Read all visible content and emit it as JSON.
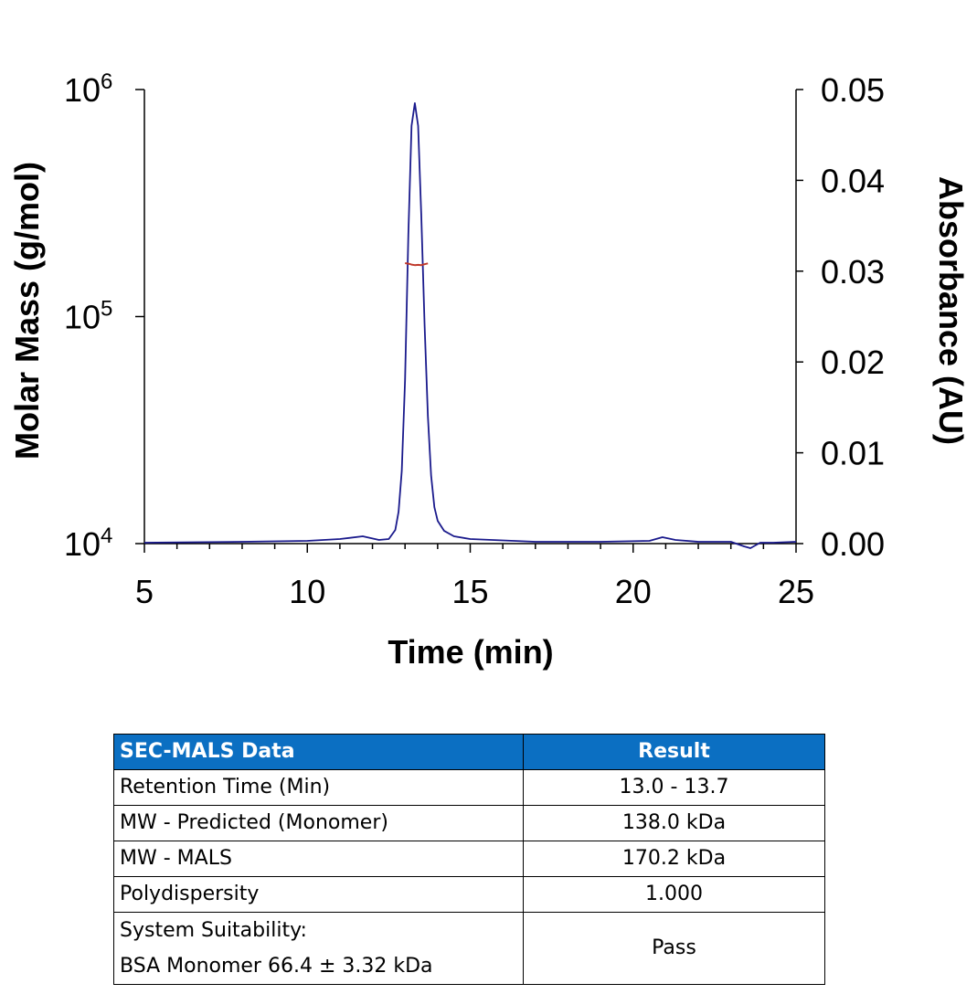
{
  "chart_data": {
    "type": "line",
    "xlabel": "Time (min)",
    "ylabel_left": "Molar Mass (g/mol)",
    "ylabel_right": "Absorbance (AU)",
    "xlim": [
      5,
      25
    ],
    "x_ticks": [
      "5",
      "10",
      "15",
      "20",
      "25"
    ],
    "y_left_scale": "log",
    "y_left_lim": [
      10000,
      1000000
    ],
    "y_left_ticks": [
      {
        "base": "10",
        "exp": "4"
      },
      {
        "base": "10",
        "exp": "5"
      },
      {
        "base": "10",
        "exp": "6"
      }
    ],
    "y_right_lim": [
      0,
      0.05
    ],
    "y_right_ticks": [
      "0.00",
      "0.01",
      "0.02",
      "0.03",
      "0.04",
      "0.05"
    ],
    "series": [
      {
        "axis": "right",
        "color": "#1a1a8c",
        "x": [
          5.0,
          8.0,
          10.0,
          11.0,
          11.7,
          12.2,
          12.5,
          12.7,
          12.8,
          12.9,
          13.0,
          13.1,
          13.2,
          13.3,
          13.4,
          13.5,
          13.6,
          13.7,
          13.8,
          13.9,
          14.0,
          14.2,
          14.5,
          15.0,
          17.0,
          19.0,
          20.5,
          20.9,
          21.3,
          22.0,
          23.0,
          23.4,
          23.6,
          23.9,
          24.3,
          25.0
        ],
        "y": [
          0.0001,
          0.0002,
          0.0003,
          0.0005,
          0.0008,
          0.0004,
          0.0005,
          0.0015,
          0.0035,
          0.008,
          0.018,
          0.034,
          0.046,
          0.0485,
          0.046,
          0.036,
          0.024,
          0.014,
          0.0075,
          0.004,
          0.0025,
          0.0014,
          0.0008,
          0.0005,
          0.0002,
          0.0002,
          0.0003,
          0.0007,
          0.0004,
          0.0002,
          0.0002,
          -0.0003,
          -0.0005,
          0.0001,
          0.0001,
          0.0002
        ]
      },
      {
        "axis": "left",
        "color": "#c0392b",
        "x": [
          13.0,
          13.1,
          13.2,
          13.3,
          13.4,
          13.5,
          13.6,
          13.7
        ],
        "y": [
          172000,
          171000,
          169500,
          168500,
          169000,
          168500,
          170000,
          171500
        ]
      }
    ]
  },
  "table": {
    "headers": [
      "SEC-MALS Data",
      "Result"
    ],
    "rows": [
      {
        "label": "Retention Time (Min)",
        "value": "13.0 - 13.7"
      },
      {
        "label": "MW - Predicted (Monomer)",
        "value": "138.0 kDa"
      },
      {
        "label": "MW - MALS",
        "value": "170.2 kDa"
      },
      {
        "label": "Polydispersity",
        "value": "1.000"
      }
    ],
    "last_row": {
      "label_line1": "System Suitability:",
      "label_line2": "BSA Monomer 66.4 ± 3.32 kDa",
      "value": "Pass"
    }
  }
}
